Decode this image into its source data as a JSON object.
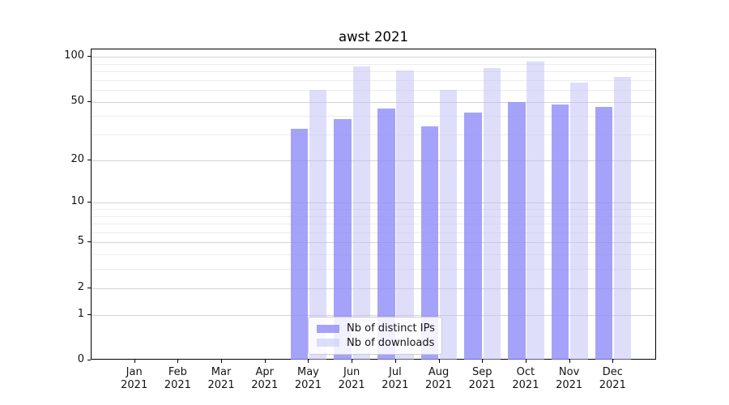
{
  "chart_data": {
    "type": "bar",
    "title": "awst 2021",
    "categories": [
      "Jan",
      "Feb",
      "Mar",
      "Apr",
      "May",
      "Jun",
      "Jul",
      "Aug",
      "Sep",
      "Oct",
      "Nov",
      "Dec"
    ],
    "x_year_line": "2021",
    "series": [
      {
        "name": "Nb of distinct IPs",
        "color": "rgba(140,137,247,0.78)",
        "values": [
          null,
          null,
          null,
          null,
          33,
          38,
          45,
          34,
          42,
          50,
          48,
          46
        ]
      },
      {
        "name": "Nb of downloads",
        "color": "rgba(190,190,248,0.5)",
        "values": [
          null,
          null,
          null,
          null,
          60,
          86,
          81,
          60,
          84,
          93,
          67,
          73
        ]
      }
    ],
    "xlabel": "",
    "ylabel": "",
    "yscale": "log1p",
    "ylim": [
      0,
      112
    ],
    "yticks": [
      0,
      1,
      2,
      5,
      10,
      20,
      50,
      100
    ],
    "ytick_labels": [
      "0",
      "1",
      "2",
      "5",
      "10",
      "20",
      "50",
      "100"
    ],
    "yticks_minor": [
      3,
      4,
      6,
      7,
      8,
      9,
      30,
      40,
      60,
      70,
      80,
      90
    ],
    "grid": "horizontal",
    "legend_position": "lower center",
    "colors": {
      "bar_distinct_ips": "#a8a6f8",
      "bar_downloads": "#dedefb",
      "grid_major": "#d4d4d4",
      "grid_minor": "#ececec",
      "axis": "#000000",
      "text": "#141414",
      "legend_border": "#cccccc"
    }
  }
}
